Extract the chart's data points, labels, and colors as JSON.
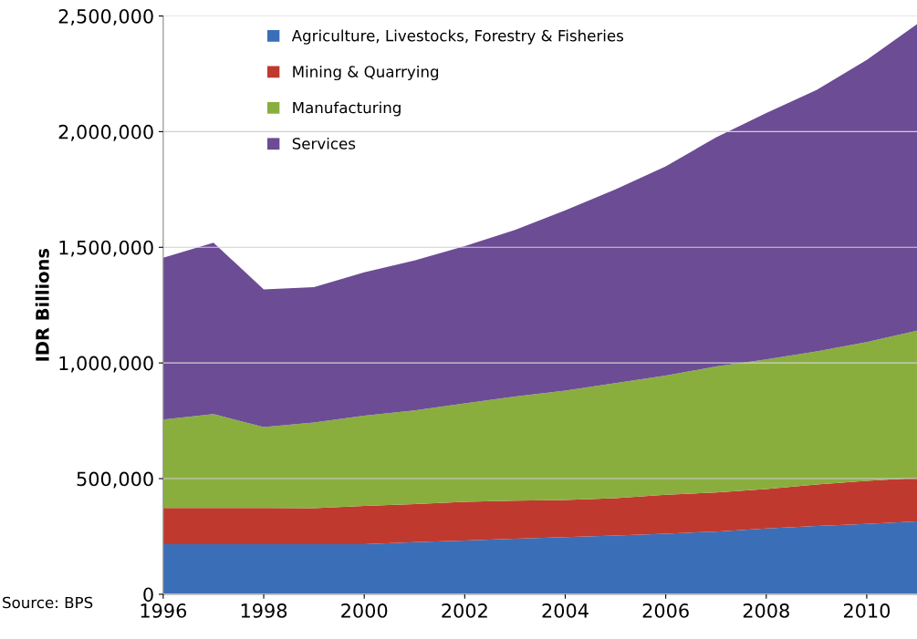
{
  "chart_data": {
    "type": "area",
    "stacked": true,
    "ylabel": "IDR Billions",
    "x": [
      1996,
      1997,
      1998,
      1999,
      2000,
      2001,
      2002,
      2003,
      2004,
      2005,
      2006,
      2007,
      2008,
      2009,
      2010,
      2011
    ],
    "series": [
      {
        "name": "Agriculture, Livestocks, Forestry & Fisheries",
        "color": "#3a6fb8",
        "values": [
          216000,
          216000,
          216000,
          216000,
          216000,
          225000,
          232000,
          240000,
          247000,
          254000,
          262000,
          271000,
          284000,
          295000,
          304000,
          315000
        ]
      },
      {
        "name": "Mining & Quarrying",
        "color": "#c0392f",
        "values": [
          157000,
          157000,
          157000,
          156000,
          166000,
          165000,
          168000,
          165000,
          161000,
          161000,
          168000,
          169000,
          171000,
          180000,
          186000,
          188000
        ]
      },
      {
        "name": "Manufacturing",
        "color": "#8aae3e",
        "values": [
          382000,
          406000,
          350000,
          371000,
          390000,
          405000,
          425000,
          450000,
          472000,
          498000,
          515000,
          545000,
          560000,
          575000,
          600000,
          637000
        ]
      },
      {
        "name": "Services",
        "color": "#6c4c94",
        "values": [
          700000,
          741000,
          595000,
          585000,
          620000,
          648000,
          680000,
          720000,
          780000,
          837000,
          905000,
          990000,
          1065000,
          1130000,
          1220000,
          1325000
        ]
      }
    ],
    "xlim": [
      1996,
      2011
    ],
    "xticks": [
      1996,
      1998,
      2000,
      2002,
      2004,
      2006,
      2008,
      2010
    ],
    "ylim": [
      0,
      2500000
    ],
    "yticks": [
      {
        "value": 0,
        "label": "0"
      },
      {
        "value": 500000,
        "label": "500,000"
      },
      {
        "value": 1000000,
        "label": "1,000,000"
      },
      {
        "value": 1500000,
        "label": "1,500,000"
      },
      {
        "value": 2000000,
        "label": "2,000,000"
      },
      {
        "value": 2500000,
        "label": "2,500,000"
      }
    ],
    "grid": "y",
    "legend": "top left",
    "annotations": [
      "Source: BPS"
    ]
  }
}
